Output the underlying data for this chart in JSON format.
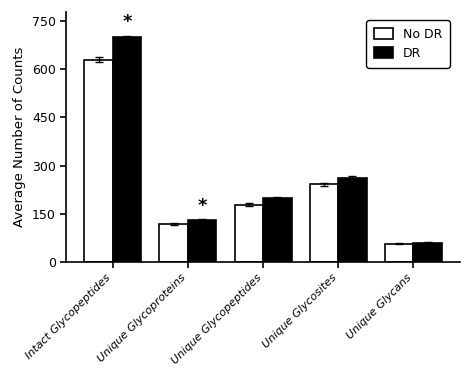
{
  "categories": [
    "Intact Glycopeptides",
    "Unique Glycoproteins",
    "Unique Glycopeptides",
    "Unique Glycosites",
    "Unique Glycans"
  ],
  "no_dr_values": [
    630,
    118,
    178,
    242,
    57
  ],
  "dr_values": [
    700,
    130,
    198,
    262,
    59
  ],
  "no_dr_errors": [
    7,
    3,
    5,
    5,
    2
  ],
  "dr_errors": [
    5,
    3,
    5,
    6,
    2
  ],
  "no_dr_color": "#ffffff",
  "dr_color": "#000000",
  "edge_color": "#000000",
  "ylabel": "Average Number of Counts",
  "ylim": [
    0,
    780
  ],
  "yticks": [
    0,
    150,
    300,
    450,
    600,
    750
  ],
  "bar_width": 0.38,
  "significant_groups": [
    0,
    1
  ],
  "legend_labels": [
    "No DR",
    "DR"
  ],
  "background_color": "#ffffff",
  "linewidth": 1.2
}
